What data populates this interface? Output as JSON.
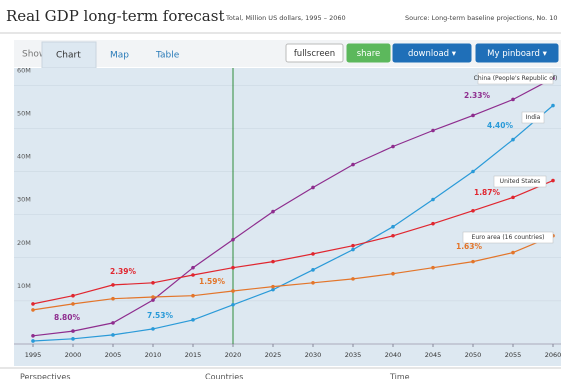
{
  "header": {
    "title": "Real GDP long-term forecast",
    "subtitle": "Total, Million US dollars, 1995 – 2060",
    "source": "Source: Long-term baseline projections, No. 10"
  },
  "toolbar": {
    "show": "Show:",
    "tabs": [
      "Chart",
      "Map",
      "Table"
    ],
    "active_tab": 0,
    "buttons": [
      "fullscreen",
      "share",
      "download ▾",
      "My pinboard ▾"
    ]
  },
  "chart_data": {
    "type": "line",
    "x": [
      1995,
      2000,
      2005,
      2010,
      2015,
      2020,
      2025,
      2030,
      2035,
      2040,
      2045,
      2050,
      2055,
      2060
    ],
    "xlim": [
      1995,
      2060
    ],
    "xticks": [
      1995,
      2000,
      2005,
      2010,
      2015,
      2020,
      2025,
      2030,
      2035,
      2040,
      2045,
      2050,
      2055,
      2060
    ],
    "ylim": [
      0,
      64
    ],
    "yticks": [
      {
        "value": 10,
        "label": "10M"
      },
      {
        "value": 20,
        "label": "20M"
      },
      {
        "value": 30,
        "label": "30M"
      },
      {
        "value": 40,
        "label": "40M"
      },
      {
        "value": 50,
        "label": "50M"
      },
      {
        "value": 60,
        "label": "60M"
      }
    ],
    "vline": 2020,
    "series": [
      {
        "name": "China (People's Republic of)",
        "color": "#8e2d8e",
        "values": [
          1.9,
          3.0,
          4.9,
          10.2,
          17.7,
          24.2,
          30.7,
          36.3,
          41.6,
          45.8,
          49.5,
          53.0,
          56.7,
          61.6
        ]
      },
      {
        "name": "India",
        "color": "#2a9ad8",
        "values": [
          0.7,
          1.2,
          2.1,
          3.5,
          5.6,
          9.1,
          12.6,
          17.2,
          21.9,
          27.2,
          33.5,
          40.0,
          47.4,
          55.3
        ]
      },
      {
        "name": "United States",
        "color": "#e0262f",
        "values": [
          9.3,
          11.2,
          13.7,
          14.2,
          16.0,
          17.7,
          19.1,
          20.9,
          22.8,
          25.1,
          27.9,
          30.9,
          34.0,
          37.9
        ]
      },
      {
        "name": "Euro area (16 countries)",
        "color": "#e3752a",
        "values": [
          7.9,
          9.3,
          10.5,
          10.9,
          11.2,
          12.3,
          13.3,
          14.2,
          15.1,
          16.3,
          17.7,
          19.1,
          21.2,
          25.1
        ]
      }
    ],
    "annotations": [
      {
        "text": "8.80%",
        "color": "#8e2d8e"
      },
      {
        "text": "7.53%",
        "color": "#2a9ad8"
      },
      {
        "text": "2.39%",
        "color": "#e0262f"
      },
      {
        "text": "1.59%",
        "color": "#e3752a"
      },
      {
        "text": "2.33%",
        "color": "#8e2d8e"
      },
      {
        "text": "4.40%",
        "color": "#2a9ad8"
      },
      {
        "text": "1.87%",
        "color": "#e0262f"
      },
      {
        "text": "1.63%",
        "color": "#e3752a"
      }
    ]
  },
  "footer": [
    "Perspectives",
    "Countries",
    "Time"
  ]
}
